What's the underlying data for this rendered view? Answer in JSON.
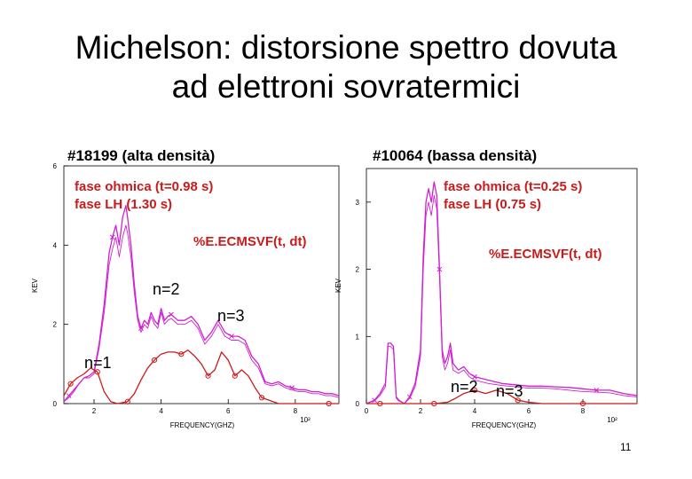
{
  "slide": {
    "title_line1": "Michelson: distorsione spettro dovuta",
    "title_line2": "ad elettroni sovratermici",
    "page_number": "11"
  },
  "colors": {
    "sovra": "#d020d0",
    "thermal": "#cc1a1a",
    "text_red": "#cc1a1a"
  },
  "chart_data": [
    {
      "type": "line",
      "title": "#18199 (alta densità)",
      "annotation_lines": [
        "fase ohmica (t=0.98 s)",
        "fase LH (1.30 s)"
      ],
      "signal_label": "%E.ECMSVF(t, dt)",
      "harmonic_labels": [
        "n=1",
        "n=2",
        "n=3"
      ],
      "xlabel": "FREQUENCY(GHZ)",
      "ylabel": "KEV",
      "x_exponent": "10²",
      "xlim": [
        1.1,
        9.3
      ],
      "ylim": [
        0,
        6
      ],
      "xticks": [
        "2",
        "4",
        "6",
        "8"
      ],
      "yticks": [
        "0",
        "2",
        "4",
        "6"
      ],
      "series": [
        {
          "x": [
            1.1,
            1.25,
            1.4,
            1.55,
            1.7,
            1.85,
            2.0,
            2.15,
            2.3,
            2.45,
            2.55,
            2.65,
            2.75,
            2.85,
            2.95,
            3.0,
            3.1,
            3.2,
            3.3,
            3.4,
            3.5,
            3.6,
            3.7,
            3.8,
            3.9,
            4.0,
            4.1,
            4.2,
            4.3,
            4.5,
            4.7,
            4.9,
            5.1,
            5.3,
            5.5,
            5.7,
            5.9,
            6.1,
            6.3,
            6.5,
            6.7,
            6.9,
            7.1,
            7.3,
            7.5,
            7.7,
            7.9,
            8.1,
            8.3,
            8.5,
            8.7,
            8.9,
            9.1,
            9.3
          ],
          "y": [
            0.05,
            0.2,
            0.35,
            0.5,
            0.65,
            0.7,
            0.8,
            1.5,
            2.5,
            3.8,
            4.2,
            4.5,
            4.0,
            4.7,
            5.0,
            4.7,
            4.0,
            3.0,
            2.2,
            1.9,
            2.1,
            2.0,
            2.3,
            2.1,
            2.0,
            2.4,
            2.1,
            2.2,
            2.25,
            2.1,
            2.1,
            2.2,
            2.0,
            1.6,
            1.8,
            2.1,
            1.8,
            1.7,
            1.7,
            1.6,
            1.2,
            1.0,
            0.55,
            0.5,
            0.55,
            0.45,
            0.4,
            0.35,
            0.35,
            0.3,
            0.3,
            0.25,
            0.25,
            0.2
          ]
        },
        {
          "x": [
            1.1,
            1.25,
            1.4,
            1.55,
            1.7,
            1.85,
            2.0,
            2.15,
            2.3,
            2.45,
            2.55,
            2.65,
            2.75,
            2.85,
            2.95,
            3.0,
            3.1,
            3.2,
            3.3,
            3.4,
            3.5,
            3.6,
            3.7,
            3.8,
            3.9,
            4.0,
            4.1,
            4.2,
            4.3,
            4.5,
            4.7,
            4.9,
            5.1,
            5.3,
            5.5,
            5.7,
            5.9,
            6.1,
            6.3,
            6.5,
            6.7,
            6.9,
            7.1,
            7.3,
            7.5,
            7.7,
            7.9,
            8.1,
            8.3,
            8.5,
            8.7,
            8.9,
            9.1,
            9.3
          ],
          "y": [
            0.05,
            0.15,
            0.3,
            0.5,
            0.65,
            0.65,
            0.75,
            1.4,
            2.3,
            3.5,
            3.9,
            4.2,
            3.7,
            4.2,
            4.5,
            4.3,
            3.7,
            2.8,
            2.1,
            1.8,
            2.0,
            1.9,
            2.2,
            2.0,
            1.9,
            2.3,
            2.0,
            2.1,
            2.15,
            2.0,
            2.0,
            2.1,
            1.9,
            1.5,
            1.7,
            2.0,
            1.7,
            1.6,
            1.6,
            1.5,
            1.1,
            0.9,
            0.5,
            0.45,
            0.5,
            0.4,
            0.35,
            0.3,
            0.3,
            0.25,
            0.25,
            0.2,
            0.2,
            0.15
          ]
        },
        {
          "x": [
            1.1,
            1.3,
            1.5,
            1.7,
            1.9,
            2.1,
            2.3,
            2.5,
            2.7,
            3.0,
            3.2,
            3.4,
            3.6,
            3.8,
            4.0,
            4.2,
            4.4,
            4.6,
            4.8,
            5.0,
            5.2,
            5.4,
            5.6,
            5.8,
            6.0,
            6.2,
            6.4,
            6.6,
            6.8,
            7.0,
            7.5,
            8.0,
            8.5,
            9.0,
            9.3
          ],
          "y": [
            0.2,
            0.5,
            0.65,
            0.75,
            0.9,
            0.8,
            0.3,
            0.05,
            0.0,
            0.05,
            0.25,
            0.6,
            0.9,
            1.1,
            1.25,
            1.3,
            1.3,
            1.25,
            1.35,
            1.2,
            1.0,
            0.7,
            0.85,
            1.3,
            1.1,
            0.7,
            0.85,
            0.7,
            0.4,
            0.15,
            0.0,
            0.0,
            0.0,
            0.0,
            0.0
          ]
        }
      ]
    },
    {
      "type": "line",
      "title": "#10064 (bassa densità)",
      "annotation_lines": [
        "fase ohmica (t=0.25 s)",
        "fase LH (0.75 s)"
      ],
      "signal_label": "%E.ECMSVF(t, dt)",
      "harmonic_labels": [
        "n=2",
        "n=3"
      ],
      "xlabel": "FREQUENCY(GHZ)",
      "ylabel": "KEV",
      "x_exponent": "10²",
      "xlim": [
        0,
        10
      ],
      "ylim": [
        0,
        3.5
      ],
      "xticks": [
        "0",
        "2",
        "4",
        "6",
        "8"
      ],
      "yticks": [
        "0",
        "1",
        "2",
        "3"
      ],
      "series": [
        {
          "x": [
            0,
            0.3,
            0.5,
            0.7,
            0.8,
            0.9,
            1.0,
            1.1,
            1.2,
            1.4,
            1.6,
            1.8,
            2.0,
            2.1,
            2.2,
            2.3,
            2.4,
            2.5,
            2.6,
            2.7,
            2.8,
            2.9,
            3.0,
            3.1,
            3.2,
            3.4,
            3.6,
            3.8,
            4.0,
            4.5,
            5.0,
            5.5,
            6.0,
            6.5,
            7.0,
            7.5,
            8.0,
            8.5,
            9.0,
            9.5,
            10.0
          ],
          "y": [
            0,
            0.05,
            0.15,
            0.3,
            0.9,
            0.9,
            0.85,
            0.1,
            0.05,
            0.0,
            0.1,
            0.3,
            0.8,
            2.2,
            3.0,
            3.2,
            3.0,
            3.3,
            3.1,
            2.0,
            0.8,
            0.6,
            0.7,
            0.9,
            0.6,
            0.5,
            0.55,
            0.45,
            0.4,
            0.35,
            0.3,
            0.28,
            0.26,
            0.26,
            0.25,
            0.24,
            0.22,
            0.2,
            0.2,
            0.15,
            0.12
          ]
        },
        {
          "x": [
            0,
            0.3,
            0.5,
            0.7,
            0.8,
            0.9,
            1.0,
            1.1,
            1.2,
            1.4,
            1.6,
            1.8,
            2.0,
            2.1,
            2.2,
            2.3,
            2.4,
            2.5,
            2.6,
            2.7,
            2.8,
            2.9,
            3.0,
            3.1,
            3.2,
            3.4,
            3.6,
            3.8,
            4.0,
            4.5,
            5.0,
            5.5,
            6.0,
            6.5,
            7.0,
            7.5,
            8.0,
            8.5,
            9.0,
            9.5,
            10.0
          ],
          "y": [
            0,
            0.04,
            0.12,
            0.25,
            0.85,
            0.85,
            0.8,
            0.08,
            0.04,
            0.0,
            0.08,
            0.25,
            0.7,
            2.0,
            2.8,
            3.0,
            2.8,
            3.1,
            2.9,
            1.9,
            0.7,
            0.5,
            0.6,
            0.8,
            0.5,
            0.45,
            0.5,
            0.4,
            0.35,
            0.3,
            0.27,
            0.25,
            0.23,
            0.23,
            0.22,
            0.2,
            0.18,
            0.17,
            0.16,
            0.12,
            0.1
          ]
        },
        {
          "x": [
            0,
            0.5,
            1.0,
            1.5,
            2.0,
            2.5,
            3.0,
            3.3,
            3.6,
            4.0,
            4.4,
            4.8,
            5.2,
            5.6,
            6.0,
            6.5,
            7.0,
            8.0,
            9.0,
            10.0
          ],
          "y": [
            0,
            0,
            0,
            0,
            0,
            0,
            0.02,
            0.08,
            0.15,
            0.2,
            0.15,
            0.2,
            0.15,
            0.05,
            0.02,
            0,
            0,
            0,
            0,
            0
          ]
        }
      ]
    }
  ]
}
